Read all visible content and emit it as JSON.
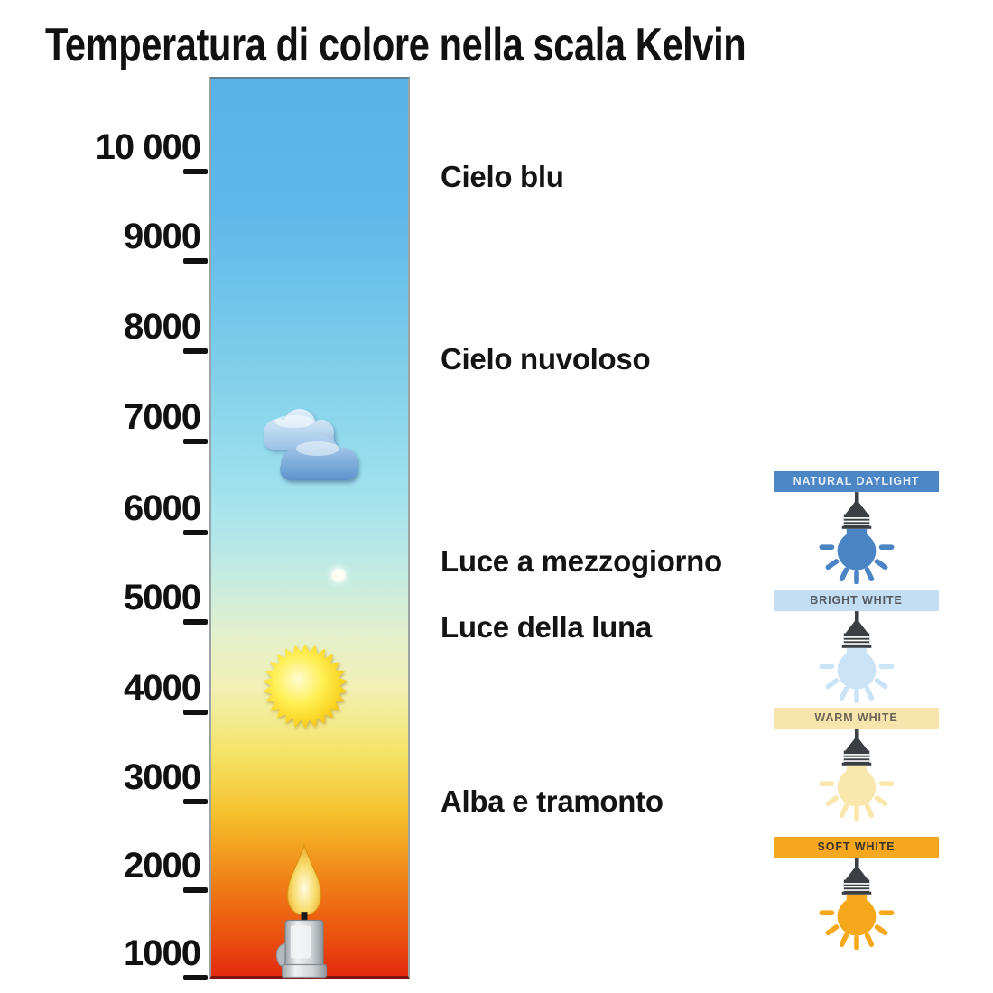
{
  "title": "Temperatura di colore nella scala Kelvin",
  "kelvin_scale": {
    "unit": "K",
    "ticks": [
      {
        "label": "10 000",
        "kelvin": 10000
      },
      {
        "label": "9000",
        "kelvin": 9000
      },
      {
        "label": "8000",
        "kelvin": 8000
      },
      {
        "label": "7000",
        "kelvin": 7000
      },
      {
        "label": "6000",
        "kelvin": 6000
      },
      {
        "label": "5000",
        "kelvin": 5000
      },
      {
        "label": "4000",
        "kelvin": 4000
      },
      {
        "label": "3000",
        "kelvin": 3000
      },
      {
        "label": "2000",
        "kelvin": 2000
      },
      {
        "label": "1000",
        "kelvin": 1000
      }
    ],
    "annotations": [
      {
        "text": "Cielo blu"
      },
      {
        "text": "Cielo nuvoloso"
      },
      {
        "text": "Luce a mezzogiorno"
      },
      {
        "text": "Luce della luna"
      },
      {
        "text": "Alba e tramonto"
      }
    ],
    "icons": [
      {
        "name": "clouds-icon",
        "kelvin_approx": 6800
      },
      {
        "name": "moon-dot-icon",
        "kelvin_approx": 5500
      },
      {
        "name": "sun-icon",
        "kelvin_approx": 4300
      },
      {
        "name": "candle-icon",
        "kelvin_approx": 1500
      }
    ],
    "gradient_stops": [
      {
        "pct": 0,
        "color": "#58b2e8"
      },
      {
        "pct": 15,
        "color": "#60b8ea"
      },
      {
        "pct": 30,
        "color": "#7accea"
      },
      {
        "pct": 42,
        "color": "#96dcec"
      },
      {
        "pct": 50,
        "color": "#aee6ec"
      },
      {
        "pct": 56,
        "color": "#c6ecdf"
      },
      {
        "pct": 62,
        "color": "#e4f0cc"
      },
      {
        "pct": 68,
        "color": "#f2f0b4"
      },
      {
        "pct": 75,
        "color": "#f4e468"
      },
      {
        "pct": 82,
        "color": "#f6c02c"
      },
      {
        "pct": 89,
        "color": "#f08418"
      },
      {
        "pct": 95,
        "color": "#ec5510"
      },
      {
        "pct": 100,
        "color": "#e32b10"
      }
    ]
  },
  "bulb_panels": [
    {
      "label": "NATURAL DAYLIGHT",
      "banner_color": "#4d86c4",
      "label_color": "#e4edf7",
      "bulb_color": "#4b84c4"
    },
    {
      "label": "BRIGHT WHITE",
      "banner_color": "#c3ddf2",
      "label_color": "#55595e",
      "bulb_color": "#cbe3f6"
    },
    {
      "label": "WARM WHITE",
      "banner_color": "#f8e5ae",
      "label_color": "#6b6353",
      "bulb_color": "#fae7ae"
    },
    {
      "label": "SOFT WHITE",
      "banner_color": "#f5a81f",
      "label_color": "#3e3426",
      "bulb_color": "#f6a81c"
    }
  ]
}
